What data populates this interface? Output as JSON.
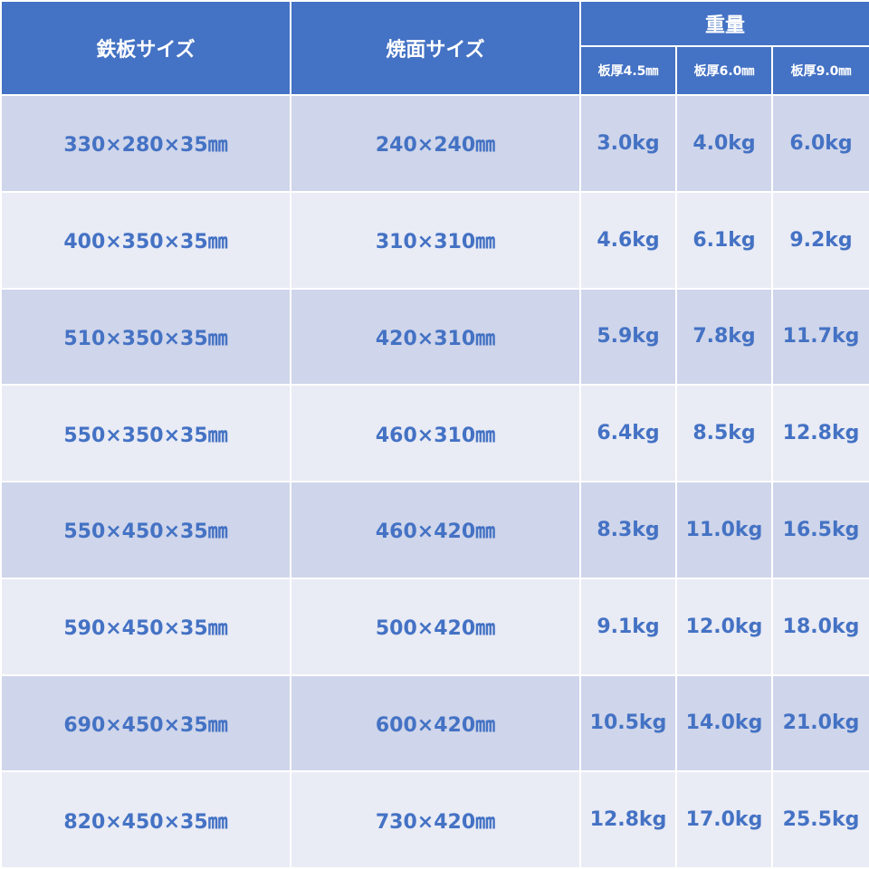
{
  "header": {
    "plate_size": "鉄板サイズ",
    "grill_size": "焼面サイズ",
    "weight": "重量",
    "thickness": [
      "板厚4.5㎜",
      "板厚6.0㎜",
      "板厚9.0㎜"
    ]
  },
  "table": {
    "rows": [
      [
        "330×280×35㎜",
        "240×240㎜",
        "3.0kg",
        "4.0kg",
        "6.0kg"
      ],
      [
        "400×350×35㎜",
        "310×310㎜",
        "4.6kg",
        "6.1kg",
        "9.2kg"
      ],
      [
        "510×350×35㎜",
        "420×310㎜",
        "5.9kg",
        "7.8kg",
        "11.7kg"
      ],
      [
        "550×350×35㎜",
        "460×310㎜",
        "6.4kg",
        "8.5kg",
        "12.8kg"
      ],
      [
        "550×450×35㎜",
        "460×420㎜",
        "8.3kg",
        "11.0kg",
        "16.5kg"
      ],
      [
        "590×450×35㎜",
        "500×420㎜",
        "9.1kg",
        "12.0kg",
        "18.0kg"
      ],
      [
        "690×450×35㎜",
        "600×420㎜",
        "10.5kg",
        "14.0kg",
        "21.0kg"
      ],
      [
        "820×450×35㎜",
        "730×420㎜",
        "12.8kg",
        "17.0kg",
        "25.5kg"
      ]
    ]
  }
}
